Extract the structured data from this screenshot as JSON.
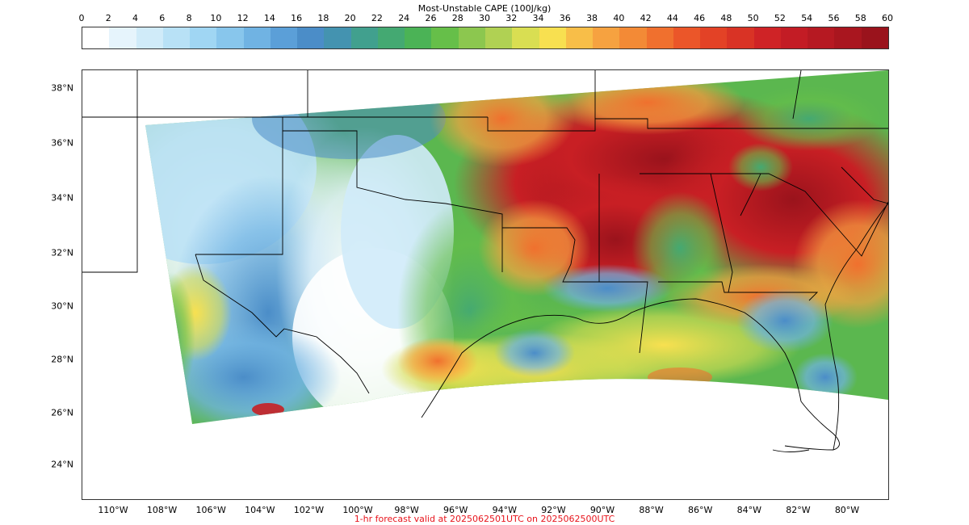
{
  "colorbar": {
    "title": "Most-Unstable CAPE (100J/kg)",
    "ticks": [
      "0",
      "2",
      "4",
      "6",
      "8",
      "10",
      "12",
      "14",
      "16",
      "18",
      "20",
      "22",
      "24",
      "26",
      "28",
      "30",
      "32",
      "34",
      "36",
      "38",
      "40",
      "42",
      "44",
      "46",
      "48",
      "50",
      "52",
      "54",
      "56",
      "58",
      "60"
    ],
    "colors": [
      "#ffffff",
      "#e6f4fc",
      "#d0ebf9",
      "#b8e1f6",
      "#a0d6f3",
      "#88c6ec",
      "#70b3e3",
      "#5b9fd8",
      "#4b8dc8",
      "#4493b0",
      "#41a08e",
      "#44a972",
      "#4bb356",
      "#66bf49",
      "#8cc74f",
      "#b0d153",
      "#d9de52",
      "#f8e050",
      "#f8be48",
      "#f6a240",
      "#f38a36",
      "#f0702e",
      "#eb5629",
      "#e34226",
      "#d93325",
      "#cf2326",
      "#c31c25",
      "#b61922",
      "#a9161f",
      "#9a131c"
    ]
  },
  "map": {
    "lat_labels": [
      "38°N",
      "36°N",
      "34°N",
      "32°N",
      "30°N",
      "28°N",
      "26°N",
      "24°N"
    ],
    "lon_labels": [
      "110°W",
      "108°W",
      "106°W",
      "104°W",
      "102°W",
      "100°W",
      "98°W",
      "96°W",
      "94°W",
      "92°W",
      "90°W",
      "88°W",
      "86°W",
      "84°W",
      "82°W",
      "80°W"
    ],
    "palette": {
      "low": "#c8e6f7",
      "mid": "#4ea85f",
      "high": "#c81f24",
      "peak": "#9a131c",
      "border": "#000000"
    }
  },
  "footer": {
    "text": "1-hr forecast valid at 2025062501UTC on 2025062500UTC",
    "color": "#e8141c"
  }
}
